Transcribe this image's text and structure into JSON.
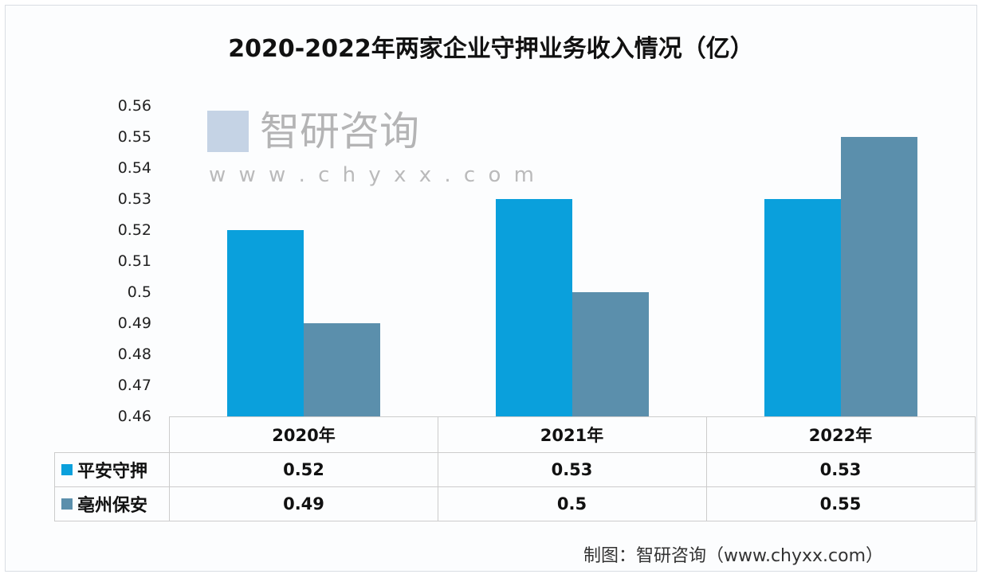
{
  "chart_data": {
    "type": "bar",
    "title": "2020-2022年两家企业守押业务收入情况（亿）",
    "categories": [
      "2020年",
      "2021年",
      "2022年"
    ],
    "series": [
      {
        "name": "平安守押",
        "values": [
          0.52,
          0.53,
          0.53
        ],
        "color": "#0aa0dc",
        "labels": [
          "0.52",
          "0.53",
          "0.53"
        ]
      },
      {
        "name": "亳州保安",
        "values": [
          0.49,
          0.5,
          0.55
        ],
        "color": "#5b8fac",
        "labels": [
          "0.49",
          "0.5",
          "0.55"
        ]
      }
    ],
    "ylim": [
      0.46,
      0.56
    ],
    "yticks": [
      "0.56",
      "0.55",
      "0.54",
      "0.53",
      "0.52",
      "0.51",
      "0.5",
      "0.49",
      "0.48",
      "0.47",
      "0.46"
    ],
    "grid": false,
    "legend": "data-table"
  },
  "watermark": {
    "name": "智研咨询",
    "url": "w w w . c h y x x . c o m"
  },
  "source": "制图：智研咨询（www.chyxx.com）"
}
